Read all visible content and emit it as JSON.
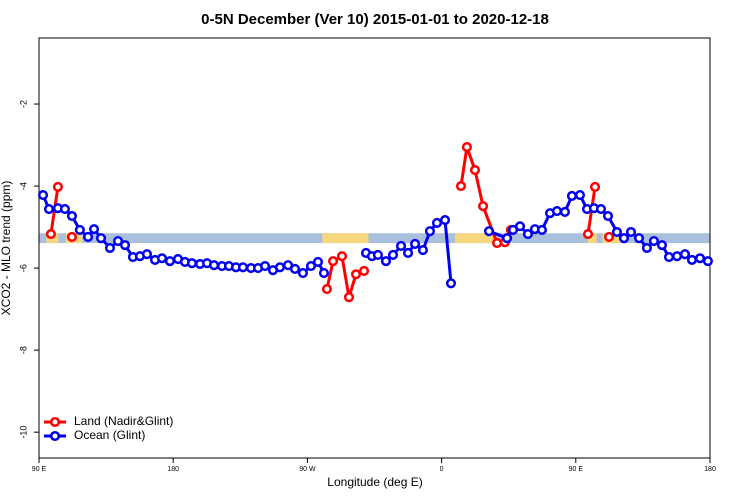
{
  "chart_data": {
    "type": "line",
    "title": "0-5N December (Ver 10)   2015-01-01 to 2020-12-18",
    "x_label": "Longitude (deg E)",
    "y_label": "XCO2 - MLO trend (ppm)",
    "xlim": [
      90,
      540
    ],
    "xticks": [
      {
        "value": 90,
        "label": "90 E"
      },
      {
        "value": 180,
        "label": "180"
      },
      {
        "value": 270,
        "label": "90 W"
      },
      {
        "value": 360,
        "label": "0"
      },
      {
        "value": 450,
        "label": "90 E"
      },
      {
        "value": 540,
        "label": "180"
      }
    ],
    "ylim": [
      -10.63,
      -0.39
    ],
    "yticks": [
      -2,
      -4,
      -6,
      -8,
      -10
    ],
    "legend": "bottom-left",
    "band": {
      "value": -5.27,
      "half_width": 0.12,
      "color": "#a9bfdd",
      "land_color": "#f7d77e",
      "land": [
        [
          95,
          103
        ],
        [
          108,
          119
        ],
        [
          280,
          311
        ],
        [
          369,
          396
        ],
        [
          458,
          464
        ],
        [
          468,
          480
        ]
      ]
    },
    "series": [
      {
        "name": "Land (Nadir&Glint)",
        "color": "#ff0000",
        "x": [
          98.0,
          102.7,
          105,
          112.1,
          200,
          283.1,
          287.2,
          293.2,
          297.9,
          302.6,
          308.0,
          340,
          373.0,
          377.0,
          382.4,
          387.8,
          397.2,
          402.5,
          406.5,
          420,
          458.2,
          462.9,
          465,
          472.3
        ],
        "values": [
          -5.17,
          -4.02,
          null,
          -5.24,
          null,
          -6.51,
          -5.83,
          -5.71,
          -6.71,
          -6.15,
          -6.07,
          null,
          -4.0,
          -3.05,
          -3.61,
          -4.49,
          -5.39,
          -5.37,
          -5.07,
          null,
          -5.17,
          -4.02,
          null,
          -5.24
        ]
      },
      {
        "name": "Ocean (Glint)",
        "color": "#0000ee",
        "x": [
          92.7,
          96.7,
          102.7,
          107.4,
          112.1,
          117.4,
          122.9,
          126.9,
          131.6,
          137.6,
          143.0,
          147.7,
          153.0,
          157.7,
          162.4,
          167.8,
          172.5,
          177.8,
          183.2,
          187.9,
          192.6,
          198.0,
          202.7,
          207.4,
          212.7,
          217.4,
          222.1,
          226.8,
          232.2,
          236.9,
          241.6,
          246.9,
          251.6,
          257.0,
          261.7,
          267.0,
          272.4,
          277.1,
          281.1,
          300,
          309.3,
          313.3,
          317.3,
          322.7,
          327.4,
          332.8,
          337.5,
          342.2,
          347.5,
          352.2,
          356.9,
          362.3,
          366.3,
          380,
          391.8,
          403.9,
          407.9,
          412.6,
          417.9,
          422.6,
          427.3,
          432.7,
          437.4,
          442.7,
          447.4,
          452.8,
          457.5,
          462.2,
          466.9,
          471.6,
          477.6,
          482.3,
          487.0,
          492.4,
          497.7,
          502.4,
          507.8,
          512.5,
          517.9,
          523.2,
          527.9,
          533.3,
          538.6
        ],
        "values": [
          -4.22,
          -4.56,
          -4.54,
          -4.56,
          -4.73,
          -5.07,
          -5.24,
          -5.05,
          -5.27,
          -5.51,
          -5.34,
          -5.44,
          -5.73,
          -5.71,
          -5.66,
          -5.8,
          -5.76,
          -5.83,
          -5.78,
          -5.85,
          -5.88,
          -5.9,
          -5.88,
          -5.93,
          -5.95,
          -5.95,
          -5.98,
          -5.98,
          -6.0,
          -6.0,
          -5.95,
          -6.05,
          -5.98,
          -5.93,
          -6.02,
          -6.12,
          -5.95,
          -5.85,
          -6.12,
          null,
          -5.63,
          -5.71,
          -5.68,
          -5.83,
          -5.68,
          -5.46,
          -5.63,
          -5.41,
          -5.56,
          -5.1,
          -4.9,
          -4.83,
          -6.37,
          null,
          -5.1,
          -5.27,
          -5.07,
          -4.98,
          -5.17,
          -5.05,
          -5.07,
          -4.66,
          -4.61,
          -4.63,
          -4.24,
          -4.22,
          -4.56,
          -4.54,
          -4.56,
          -4.73,
          -5.12,
          -5.27,
          -5.12,
          -5.27,
          -5.51,
          -5.34,
          -5.44,
          -5.73,
          -5.71,
          -5.66,
          -5.8,
          -5.76,
          -5.83
        ]
      }
    ]
  }
}
